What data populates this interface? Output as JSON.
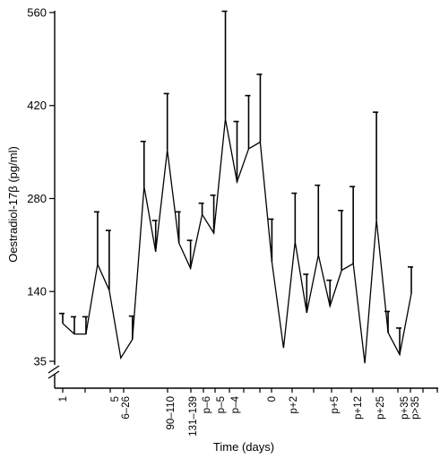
{
  "chart_data": {
    "type": "line",
    "title": "",
    "xlabel": "Time (days)",
    "ylabel": "Oestradiol-17β (pg/ml)",
    "ylim": [
      35,
      560
    ],
    "y_axis_break": true,
    "ytick_labels": [
      "35",
      "140",
      "280",
      "420",
      "560"
    ],
    "xtick_labels": [
      "1",
      "5",
      "6–26",
      "90–110",
      "131–139",
      "p–6",
      "p–5",
      "p–4",
      "0",
      "p+2",
      "p+5",
      "p+12",
      "p+25",
      "p+35",
      "p>35"
    ],
    "grid": false,
    "legend": "none",
    "series": [
      {
        "values": [
          92,
          76,
          76,
          181,
          142,
          40,
          68,
          298,
          200,
          353,
          213,
          175,
          256,
          228,
          400,
          305,
          355,
          365,
          185,
          55,
          215,
          108,
          195,
          118,
          172,
          182,
          32,
          248,
          78,
          45,
          137
        ],
        "error_upper": [
          107,
          102,
          102,
          260,
          232,
          40,
          103,
          366,
          247,
          438,
          260,
          217,
          273,
          285,
          562,
          396,
          435,
          467,
          249,
          55,
          288,
          166,
          300,
          157,
          262,
          298,
          32,
          410,
          110,
          85,
          177
        ]
      }
    ]
  }
}
